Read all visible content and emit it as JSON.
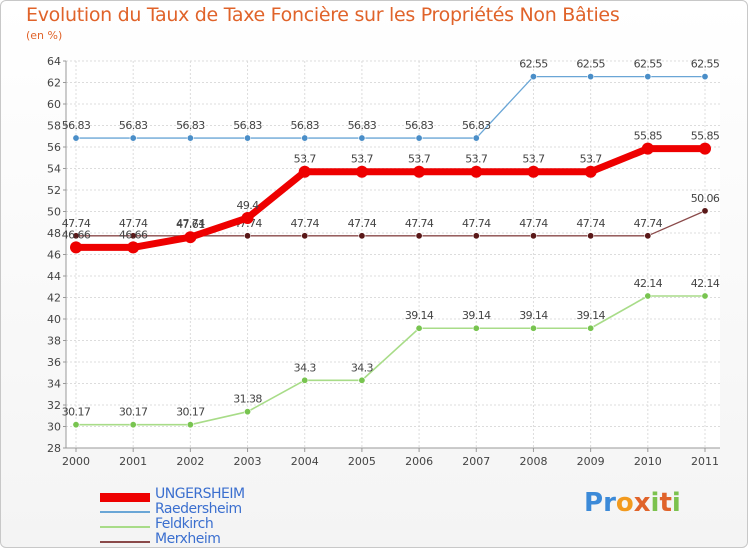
{
  "title": "Evolution du Taux de Taxe Foncière sur les Propriétés Non Bâties",
  "subtitle": "(en %)",
  "logo": {
    "text": "Proxiti",
    "letters": [
      "P",
      "r",
      "o",
      "x",
      "i",
      "t",
      "i"
    ],
    "colors": [
      "#3c8ad8",
      "#3c8ad8",
      "#f29a1e",
      "#e0632a",
      "#7cc24e",
      "#e0632a",
      "#7cc24e"
    ]
  },
  "chart_data": {
    "type": "line",
    "title": "Evolution du Taux de Taxe Foncière sur les Propriétés Non Bâties",
    "ylabel": "(en %)",
    "xlabel": "",
    "ylim": [
      28,
      64
    ],
    "yticks": [
      28,
      30,
      32,
      34,
      36,
      38,
      40,
      42,
      44,
      46,
      48,
      50,
      52,
      54,
      56,
      58,
      60,
      62,
      64
    ],
    "categories": [
      "2000",
      "2001",
      "2002",
      "2003",
      "2004",
      "2005",
      "2006",
      "2007",
      "2008",
      "2009",
      "2010",
      "2011"
    ],
    "grid": true,
    "legend_position": "bottom-left",
    "series": [
      {
        "name": "Raedersheim",
        "color": "#6aa6d6",
        "marker": "#4a8ec8",
        "width": 1.3,
        "values": [
          56.83,
          56.83,
          56.83,
          56.83,
          56.83,
          56.83,
          56.83,
          56.83,
          62.55,
          62.55,
          62.55,
          62.55
        ],
        "labels": [
          "56.83",
          "56.83",
          "56.83",
          "56.83",
          "56.83",
          "56.83",
          "56.83",
          "56.83",
          "62.55",
          "62.55",
          "62.55",
          "62.55"
        ]
      },
      {
        "name": "Merxheim",
        "color": "#8a4a4a",
        "marker": "#5a1818",
        "width": 1.3,
        "values": [
          47.74,
          47.74,
          47.74,
          47.74,
          47.74,
          47.74,
          47.74,
          47.74,
          47.74,
          47.74,
          47.74,
          50.06
        ],
        "labels": [
          "47.74",
          "47.74",
          "47.74",
          "47.74",
          "47.74",
          "47.74",
          "47.74",
          "47.74",
          "47.74",
          "47.74",
          "47.74",
          "50.06"
        ]
      },
      {
        "name": "Feldkirch",
        "color": "#a8dc88",
        "marker": "#78c450",
        "width": 1.6,
        "values": [
          30.17,
          30.17,
          30.17,
          31.38,
          34.3,
          34.3,
          39.14,
          39.14,
          39.14,
          39.14,
          42.14,
          42.14
        ],
        "labels": [
          "30.17",
          "30.17",
          "30.17",
          "31.38",
          "34.3",
          "34.3",
          "39.14",
          "39.14",
          "39.14",
          "39.14",
          "42.14",
          "42.14"
        ]
      },
      {
        "name": "UNGERSHEIM",
        "color": "#ee0000",
        "marker": "#ee0000",
        "width": 7,
        "values": [
          46.66,
          46.66,
          47.61,
          49.4,
          53.7,
          53.7,
          53.7,
          53.7,
          53.7,
          53.7,
          55.85,
          55.85
        ],
        "labels": [
          "46.66",
          "46.66",
          "47.61",
          "49.4",
          "53.7",
          "53.7",
          "53.7",
          "53.7",
          "53.7",
          "53.7",
          "55.85",
          "55.85"
        ]
      }
    ],
    "legend_order": [
      "UNGERSHEIM",
      "Raedersheim",
      "Feldkirch",
      "Merxheim"
    ]
  }
}
